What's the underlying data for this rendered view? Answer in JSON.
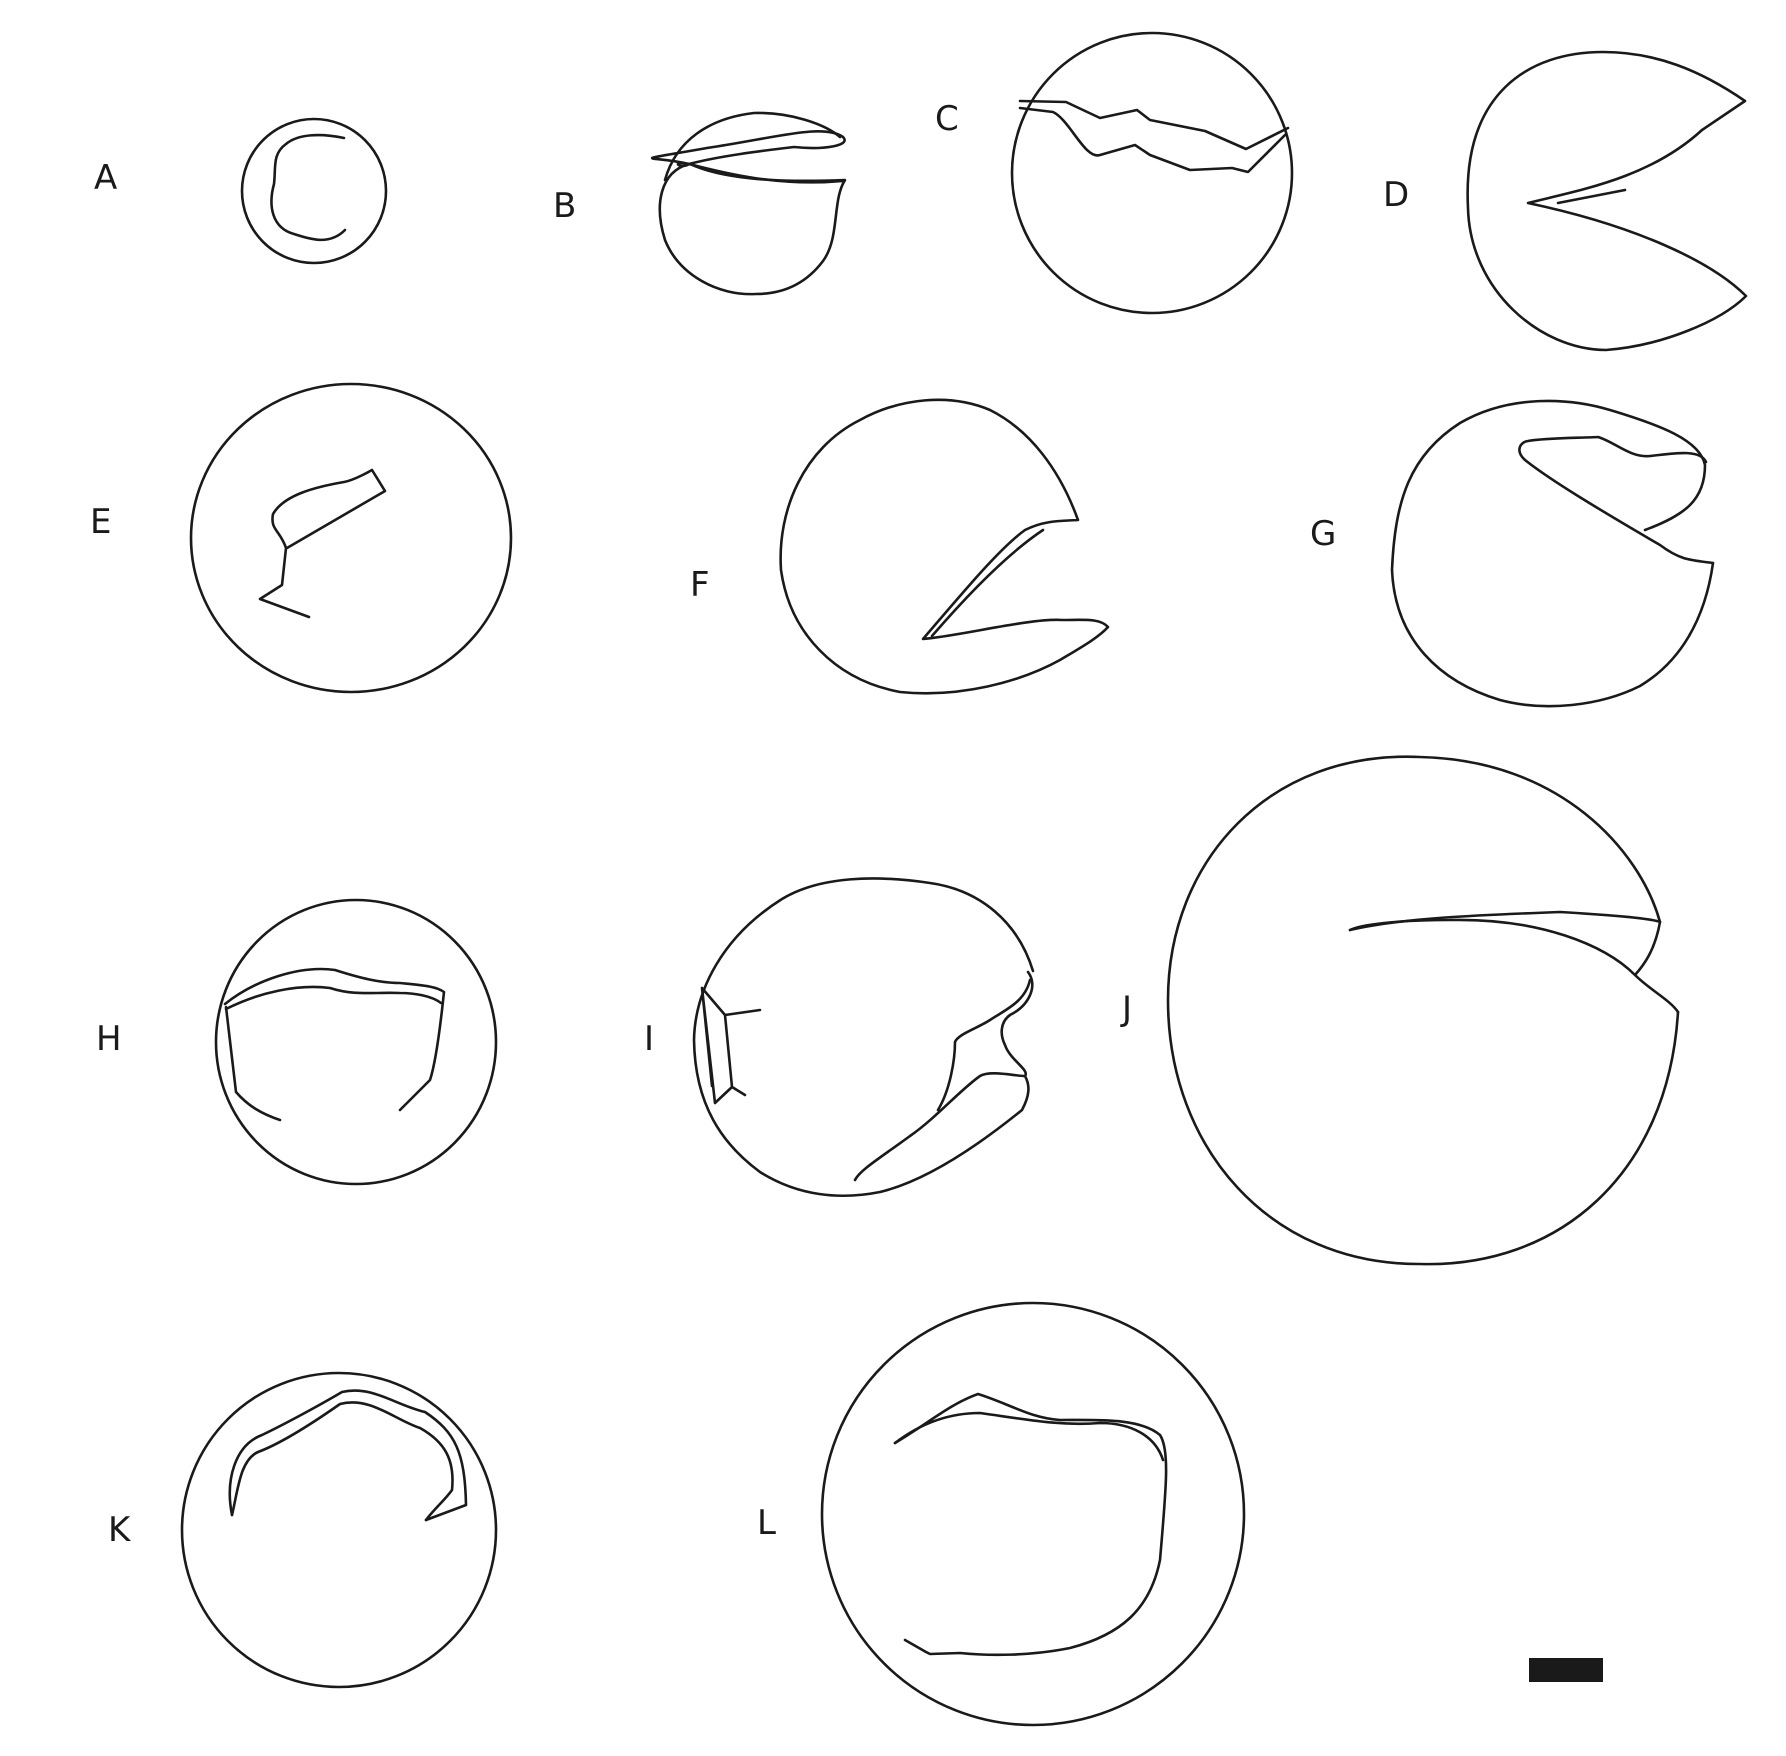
{
  "figure": {
    "stroke_color": "#1a1a1a",
    "background": "#ffffff",
    "panels": [
      {
        "id": "a",
        "label": "A"
      },
      {
        "id": "b",
        "label": "B"
      },
      {
        "id": "c",
        "label": "C"
      },
      {
        "id": "d",
        "label": "D"
      },
      {
        "id": "e",
        "label": "E"
      },
      {
        "id": "f",
        "label": "F"
      },
      {
        "id": "g",
        "label": "G"
      },
      {
        "id": "h",
        "label": "H"
      },
      {
        "id": "i",
        "label": "I"
      },
      {
        "id": "j",
        "label": "J"
      },
      {
        "id": "k",
        "label": "K"
      },
      {
        "id": "l",
        "label": "L"
      }
    ]
  }
}
